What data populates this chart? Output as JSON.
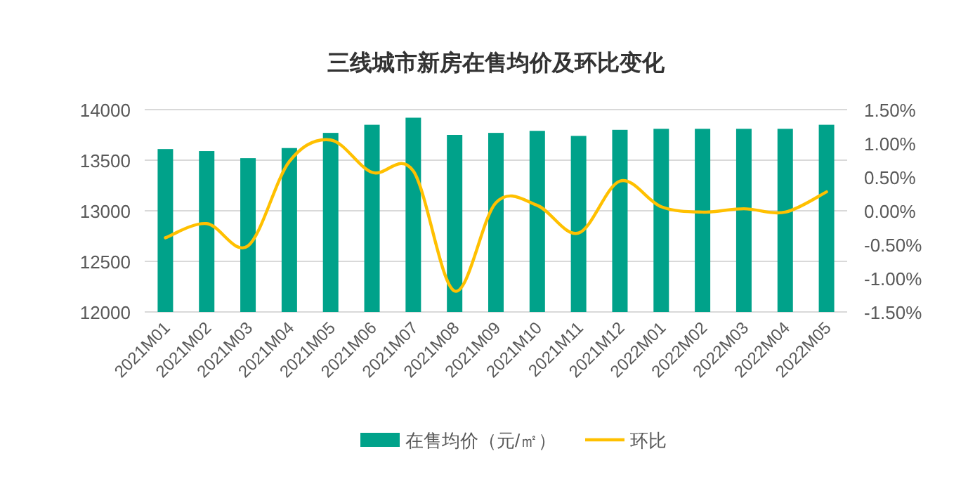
{
  "chart_data": {
    "type": "bar",
    "title": "三线城市新房在售均价及环比变化",
    "categories": [
      "2021M01",
      "2021M02",
      "2021M03",
      "2021M04",
      "2021M05",
      "2021M06",
      "2021M07",
      "2021M08",
      "2021M09",
      "2021M10",
      "2021M11",
      "2021M12",
      "2022M01",
      "2022M02",
      "2022M03",
      "2022M04",
      "2022M05"
    ],
    "series": [
      {
        "name": "在售均价（元/㎡）",
        "color": "#00a28a",
        "values": [
          13610,
          13590,
          13520,
          13620,
          13770,
          13850,
          13920,
          13750,
          13770,
          13790,
          13740,
          13800,
          13810,
          13810,
          13810,
          13810,
          13850
        ]
      },
      {
        "name": "环比",
        "type": "line",
        "axis": "y2",
        "color": "#ffc000",
        "values": [
          -0.4,
          -0.19,
          -0.52,
          0.73,
          1.05,
          0.57,
          0.59,
          -1.19,
          0.12,
          0.08,
          -0.33,
          0.44,
          0.06,
          -0.02,
          0.03,
          -0.02,
          0.28
        ]
      }
    ],
    "ylim": [
      12000,
      14000
    ],
    "yticks": [
      12000,
      12500,
      13000,
      13500,
      14000
    ],
    "y2lim": [
      -1.5,
      1.5
    ],
    "y2ticks": [
      {
        "value": -1.5,
        "label": "-1.50%"
      },
      {
        "value": -1.0,
        "label": "-1.00%"
      },
      {
        "value": -0.5,
        "label": "-0.50%"
      },
      {
        "value": 0,
        "label": "0.00%"
      },
      {
        "value": 0.5,
        "label": "0.50%"
      },
      {
        "value": 1.0,
        "label": "1.00%"
      },
      {
        "value": 1.5,
        "label": "1.50%"
      }
    ],
    "grid": "y",
    "legend": "bottom"
  }
}
